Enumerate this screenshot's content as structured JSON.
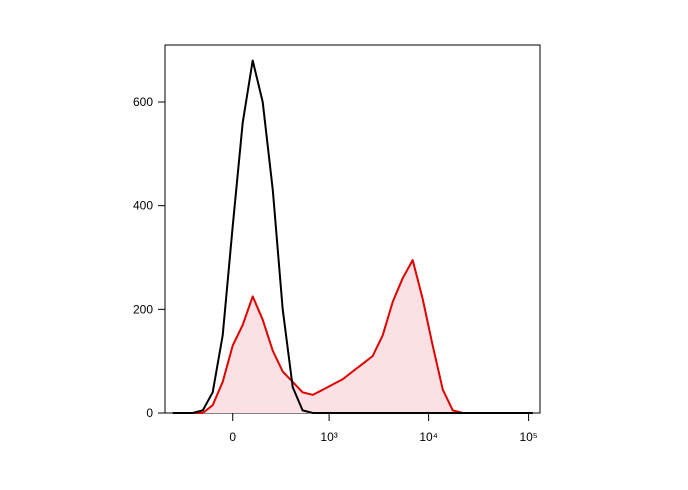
{
  "chart_data": {
    "type": "histogram-overlay",
    "x": [
      -410,
      -313,
      -233,
      -164,
      -105,
      -51,
      0,
      51,
      105,
      164,
      233,
      313,
      410,
      528,
      678,
      861,
      1089,
      1373,
      1733,
      2189,
      2759,
      3476,
      4378,
      5510,
      6935,
      8729,
      11000,
      13853,
      17440,
      21960,
      34790,
      55130,
      110000
    ],
    "series": [
      {
        "color": "#000000",
        "fill": false,
        "values": [
          0,
          0,
          0,
          5,
          40,
          150,
          360,
          560,
          680,
          600,
          430,
          200,
          50,
          5,
          0,
          0,
          0,
          0,
          0,
          0,
          0,
          0,
          0,
          0,
          0,
          0,
          0,
          0,
          0,
          0,
          0,
          0,
          0
        ]
      },
      {
        "color": "#e00000",
        "fill": "#fbe1e3",
        "values": [
          0,
          0,
          0,
          0,
          15,
          60,
          130,
          170,
          225,
          180,
          120,
          80,
          60,
          40,
          35,
          45,
          55,
          65,
          80,
          95,
          110,
          150,
          215,
          260,
          295,
          220,
          130,
          45,
          5,
          0,
          0,
          0,
          0
        ]
      }
    ],
    "xscale": "biexponential",
    "xlim": [
      -500,
      130000
    ],
    "xticks": [
      0,
      {
        "value": 1000,
        "label": "10³"
      },
      {
        "value": 10000,
        "label": "10⁴"
      },
      {
        "value": 100000,
        "label": "10⁵"
      }
    ],
    "ylim": [
      0,
      710
    ],
    "yticks": [
      0,
      200,
      400,
      600
    ]
  }
}
